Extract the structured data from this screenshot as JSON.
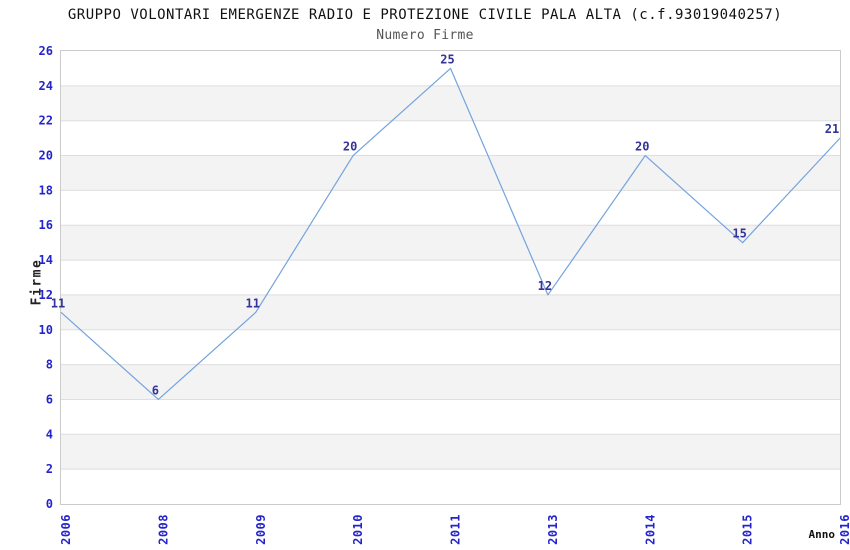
{
  "chart_data": {
    "type": "line",
    "title": "GRUPPO VOLONTARI EMERGENZE RADIO E PROTEZIONE CIVILE PALA ALTA (c.f.93019040257)",
    "subtitle": "Numero Firme",
    "xlabel": "Anno",
    "ylabel": "Firme",
    "categories": [
      "2006",
      "2008",
      "2009",
      "2010",
      "2011",
      "2013",
      "2014",
      "2015",
      "2016"
    ],
    "values": [
      11,
      6,
      11,
      20,
      25,
      12,
      20,
      15,
      21
    ],
    "ylim": [
      0,
      26
    ],
    "ytick_step": 2,
    "grid": "horizontal-bands",
    "legend": false,
    "colors": {
      "line": "#74a3de",
      "data_label": "#333399",
      "tick_label": "#2424cd",
      "band": "#f3f3f3",
      "gridline": "#dedede",
      "border": "#cbcbcb",
      "title": "#111111",
      "subtitle": "#555555"
    }
  }
}
